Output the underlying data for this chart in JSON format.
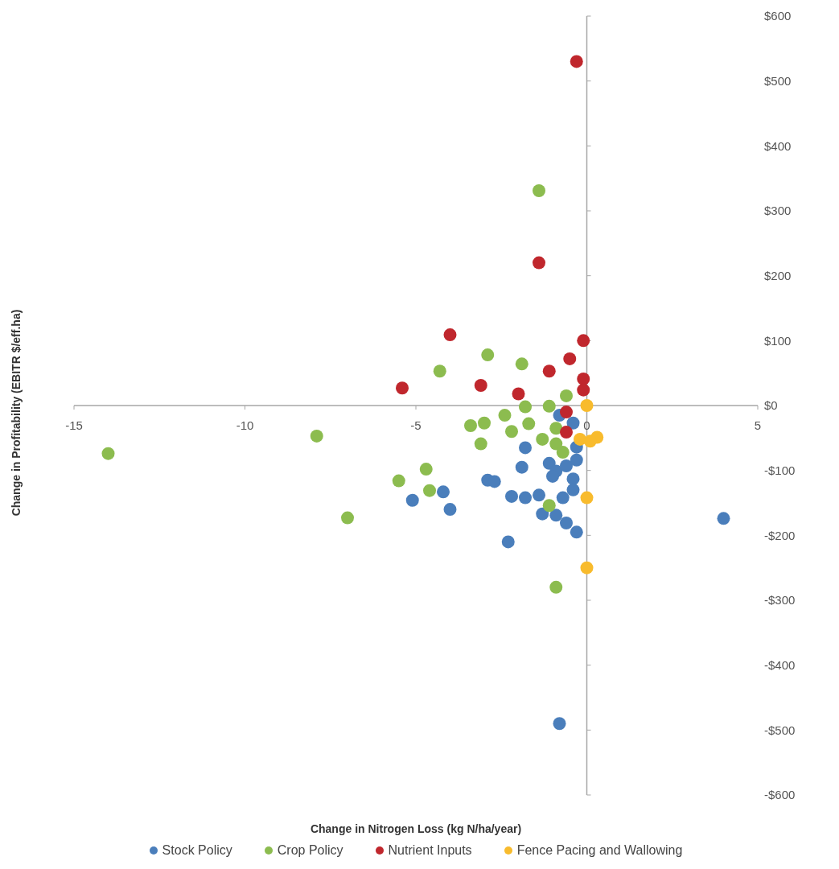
{
  "chart_data": {
    "type": "scatter",
    "xlabel": "Change in Nitrogen Loss (kg N/ha/year)",
    "ylabel": "Change in Profitability (EBITR $/eff.ha)",
    "xlim": [
      -15,
      5
    ],
    "ylim": [
      -600,
      600
    ],
    "xticks": [
      -15,
      -10,
      -5,
      {
        "value": 0,
        "label": "0"
      },
      5
    ],
    "yticks": [
      {
        "value": 600,
        "label": "$600"
      },
      {
        "value": 500,
        "label": "$500"
      },
      {
        "value": 400,
        "label": "$400"
      },
      {
        "value": 300,
        "label": "$300"
      },
      {
        "value": 200,
        "label": "$200"
      },
      {
        "value": 100,
        "label": "$100"
      },
      {
        "value": 0,
        "label": "$0"
      },
      {
        "value": -100,
        "label": "-$100"
      },
      {
        "value": -200,
        "label": "-$200"
      },
      {
        "value": -300,
        "label": "-$300"
      },
      {
        "value": -400,
        "label": "-$400"
      },
      {
        "value": -500,
        "label": "-$500"
      },
      {
        "value": -600,
        "label": "-$600"
      }
    ],
    "legend": "bottom",
    "marker": "circle",
    "series": [
      {
        "name": "Stock Policy",
        "color": "#4a7ebb",
        "x": [
          -5.1,
          -4.2,
          -4.0,
          -1.8,
          -1.9,
          -2.9,
          -2.7,
          -2.2,
          -1.8,
          -1.4,
          -2.3,
          -1.3,
          -0.9,
          -0.6,
          -0.3,
          -1.1,
          -0.9,
          -1.0,
          -0.6,
          -0.4,
          -0.4,
          -0.7,
          -0.3,
          -0.3,
          -0.8,
          -0.4,
          4.0,
          -0.8
        ],
        "values": [
          -146,
          -133,
          -160,
          -65,
          -95,
          -115,
          -117,
          -140,
          -142,
          -138,
          -210,
          -167,
          -169,
          -181,
          -195,
          -89,
          -101,
          -109,
          -93,
          -113,
          -130,
          -142,
          -84,
          -64,
          -15,
          -27,
          -174,
          -490
        ]
      },
      {
        "name": "Crop Policy",
        "color": "#8cbc4f",
        "x": [
          -14.0,
          -7.9,
          -7.0,
          -5.5,
          -4.7,
          -4.6,
          -4.3,
          -3.4,
          -3.1,
          -3.0,
          -2.9,
          -2.4,
          -2.2,
          -1.9,
          -1.8,
          -1.7,
          -1.3,
          -1.1,
          -0.9,
          -0.9,
          -0.7,
          -0.6,
          -1.1,
          -1.4,
          -0.9
        ],
        "values": [
          -74,
          -47,
          -173,
          -116,
          -98,
          -131,
          53,
          -31,
          -59,
          -27,
          78,
          -15,
          -40,
          64,
          -2,
          -28,
          -52,
          -1,
          -35,
          -59,
          -72,
          15,
          -154,
          331,
          -280
        ]
      },
      {
        "name": "Nutrient Inputs",
        "color": "#c0272d",
        "x": [
          -0.3,
          -1.4,
          -4.0,
          -5.4,
          -3.1,
          -2.0,
          -1.1,
          -0.5,
          -0.1,
          -0.1,
          -0.1,
          -0.6,
          -0.6
        ],
        "values": [
          530,
          220,
          109,
          27,
          31,
          18,
          53,
          72,
          100,
          41,
          24,
          -10,
          -41
        ]
      },
      {
        "name": "Fence Pacing and Wallowing",
        "color": "#f8bb2d",
        "x": [
          0.0,
          0.3,
          -0.2,
          0.1,
          0.0,
          0.0
        ],
        "values": [
          0,
          -49,
          -52,
          -55,
          -142,
          -250
        ]
      }
    ]
  }
}
